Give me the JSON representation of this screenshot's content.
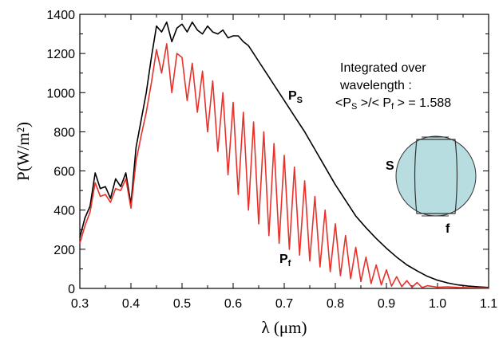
{
  "chart_data": {
    "type": "line",
    "title": "",
    "xlabel": "λ (μm)",
    "ylabel": "P(W/m²)",
    "xlim": [
      0.3,
      1.1
    ],
    "ylim": [
      0,
      1400
    ],
    "xticks": [
      0.3,
      0.4,
      0.5,
      0.6,
      0.7,
      0.8,
      0.9,
      1.0,
      1.1
    ],
    "yticks": [
      0,
      200,
      400,
      600,
      800,
      1000,
      1200,
      1400
    ],
    "grid": false,
    "series": [
      {
        "name": "P_S",
        "color": "#000000",
        "x": [
          0.3,
          0.31,
          0.32,
          0.33,
          0.34,
          0.35,
          0.36,
          0.37,
          0.38,
          0.39,
          0.4,
          0.41,
          0.42,
          0.43,
          0.44,
          0.45,
          0.46,
          0.47,
          0.48,
          0.49,
          0.5,
          0.51,
          0.52,
          0.53,
          0.54,
          0.55,
          0.56,
          0.57,
          0.58,
          0.59,
          0.6,
          0.61,
          0.62,
          0.63,
          0.64,
          0.65,
          0.66,
          0.67,
          0.68,
          0.69,
          0.7,
          0.72,
          0.74,
          0.76,
          0.78,
          0.8,
          0.82,
          0.84,
          0.86,
          0.88,
          0.9,
          0.92,
          0.94,
          0.96,
          0.98,
          1.0,
          1.02,
          1.04,
          1.06,
          1.08,
          1.1
        ],
        "y": [
          260,
          360,
          420,
          590,
          510,
          520,
          460,
          560,
          520,
          590,
          430,
          720,
          860,
          1000,
          1180,
          1340,
          1310,
          1360,
          1260,
          1330,
          1350,
          1310,
          1360,
          1320,
          1300,
          1340,
          1310,
          1300,
          1320,
          1280,
          1290,
          1290,
          1260,
          1240,
          1200,
          1160,
          1120,
          1080,
          1040,
          1000,
          960,
          880,
          800,
          710,
          620,
          530,
          450,
          370,
          310,
          255,
          205,
          160,
          120,
          90,
          62,
          42,
          28,
          18,
          12,
          8,
          5
        ]
      },
      {
        "name": "P_f",
        "color": "#e8312a",
        "x": [
          0.3,
          0.31,
          0.32,
          0.33,
          0.34,
          0.35,
          0.36,
          0.37,
          0.38,
          0.39,
          0.4,
          0.41,
          0.42,
          0.43,
          0.44,
          0.45,
          0.46,
          0.47,
          0.48,
          0.49,
          0.5,
          0.51,
          0.52,
          0.53,
          0.54,
          0.55,
          0.56,
          0.57,
          0.58,
          0.59,
          0.6,
          0.61,
          0.62,
          0.63,
          0.64,
          0.65,
          0.66,
          0.67,
          0.68,
          0.69,
          0.7,
          0.71,
          0.72,
          0.73,
          0.74,
          0.75,
          0.76,
          0.77,
          0.78,
          0.79,
          0.8,
          0.81,
          0.82,
          0.83,
          0.84,
          0.85,
          0.86,
          0.87,
          0.88,
          0.89,
          0.9,
          0.91,
          0.92,
          0.93,
          0.94,
          0.95,
          0.96,
          0.97,
          0.98,
          1.0,
          1.02,
          1.04,
          1.06,
          1.08,
          1.1
        ],
        "y": [
          230,
          320,
          390,
          540,
          470,
          480,
          440,
          510,
          500,
          560,
          410,
          650,
          780,
          900,
          1050,
          1220,
          1100,
          1250,
          1000,
          1200,
          1180,
          960,
          1150,
          900,
          1110,
          800,
          1060,
          700,
          1000,
          580,
          950,
          480,
          900,
          400,
          850,
          330,
          800,
          270,
          740,
          230,
          680,
          200,
          620,
          170,
          550,
          140,
          470,
          110,
          400,
          85,
          330,
          65,
          270,
          50,
          210,
          35,
          160,
          25,
          120,
          18,
          95,
          12,
          60,
          9,
          40,
          6,
          30,
          4,
          14,
          6,
          8,
          5,
          4,
          3,
          2
        ]
      }
    ],
    "labels": {
      "ps_main": "P",
      "ps_sub": "S",
      "pf_main": "P",
      "pf_sub": "f"
    },
    "annotation": {
      "line1": "Integrated over",
      "line2": "wavelength :",
      "line3_prefix": "<P",
      "line3_sub1": "S",
      "line3_mid": " >/< P",
      "line3_sub2": "f",
      "line3_suffix": " > = 1.588"
    },
    "inset": {
      "circle_label": "S",
      "rect_label": "f",
      "fill_color": "#b7dde0"
    }
  }
}
